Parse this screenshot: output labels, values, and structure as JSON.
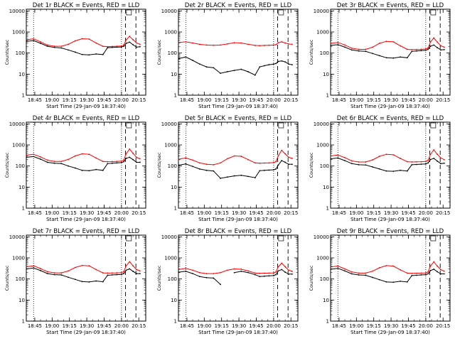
{
  "chart_data": [
    {
      "type": "line",
      "title": "Det 1r BLACK = Events, RED = LLD",
      "xlabel": "Start Time (29-Jan-09 18:37:40)",
      "ylabel": "Counts/sec",
      "x_ticks": [
        "18:45",
        "19:00",
        "19:15",
        "19:30",
        "19:45",
        "20:00",
        "20:15"
      ],
      "y_ticks": [
        "1",
        "10",
        "100",
        "1000",
        "10000"
      ],
      "xlim": [
        "18:37:40",
        "20:21"
      ],
      "ylim": [
        1,
        12000
      ],
      "y_scale": "log",
      "x": [
        "18:38",
        "18:44",
        "18:50",
        "18:56",
        "19:02",
        "19:08",
        "19:14",
        "19:20",
        "19:26",
        "19:32",
        "19:38",
        "19:44",
        "19:48",
        "19:52",
        "19:56",
        "20:00",
        "20:02",
        "20:04",
        "20:07",
        "20:10",
        "20:13",
        "20:16"
      ],
      "series": [
        {
          "color": "#000000",
          "values": [
            360,
            390,
            290,
            210,
            185,
            175,
            140,
            110,
            85,
            82,
            90,
            85,
            180,
            185,
            190,
            195,
            210,
            290,
            330,
            250,
            190,
            200
          ]
        },
        {
          "color": "#ff0000",
          "values": [
            430,
            470,
            340,
            240,
            210,
            210,
            260,
            380,
            480,
            460,
            300,
            210,
            200,
            205,
            210,
            215,
            240,
            420,
            620,
            430,
            300,
            260
          ]
        }
      ]
    },
    {
      "type": "line",
      "title": "Det 2r BLACK = Events, RED = LLD",
      "xlabel": "Start Time (29-Jan-09 18:37:40)",
      "ylabel": "Counts/sec",
      "x_ticks": [
        "18:45",
        "19:00",
        "19:15",
        "19:30",
        "19:45",
        "20:00",
        "20:15"
      ],
      "y_ticks": [
        "1",
        "10",
        "100",
        "1000",
        "10000"
      ],
      "xlim": [
        "18:37:40",
        "20:21"
      ],
      "ylim": [
        1,
        12000
      ],
      "y_scale": "log",
      "x": [
        "18:38",
        "18:44",
        "18:50",
        "18:56",
        "19:02",
        "19:08",
        "19:14",
        "19:20",
        "19:26",
        "19:32",
        "19:38",
        "19:44",
        "19:48",
        "19:52",
        "19:56",
        "20:00",
        "20:02",
        "20:04",
        "20:07",
        "20:10",
        "20:13",
        "20:16"
      ],
      "series": [
        {
          "color": "#000000",
          "values": [
            55,
            65,
            45,
            30,
            22,
            20,
            11,
            13,
            15,
            17,
            13,
            9,
            22,
            25,
            28,
            30,
            32,
            40,
            42,
            38,
            30,
            28
          ]
        },
        {
          "color": "#ff0000",
          "values": [
            320,
            340,
            300,
            260,
            240,
            235,
            240,
            270,
            310,
            300,
            260,
            230,
            225,
            230,
            235,
            240,
            250,
            310,
            340,
            300,
            270,
            260
          ]
        }
      ]
    },
    {
      "type": "line",
      "title": "Det 3r BLACK = Events, RED = LLD",
      "xlabel": "Start Time (29-Jan-09 18:37:40)",
      "ylabel": "Counts/sec",
      "x_ticks": [
        "18:45",
        "19:00",
        "19:15",
        "19:30",
        "19:45",
        "20:00",
        "20:15"
      ],
      "y_ticks": [
        "1",
        "10",
        "100",
        "1000",
        "10000"
      ],
      "xlim": [
        "18:37:40",
        "20:21"
      ],
      "ylim": [
        1,
        12000
      ],
      "y_scale": "log",
      "x": [
        "18:38",
        "18:44",
        "18:50",
        "18:56",
        "19:02",
        "19:08",
        "19:14",
        "19:20",
        "19:26",
        "19:32",
        "19:38",
        "19:44",
        "19:48",
        "19:52",
        "19:56",
        "20:00",
        "20:02",
        "20:04",
        "20:07",
        "20:10",
        "20:13",
        "20:16"
      ],
      "series": [
        {
          "color": "#000000",
          "values": [
            230,
            250,
            190,
            140,
            125,
            120,
            95,
            75,
            60,
            58,
            65,
            60,
            120,
            125,
            130,
            135,
            150,
            210,
            240,
            180,
            140,
            145
          ]
        },
        {
          "color": "#ff0000",
          "values": [
            290,
            320,
            240,
            170,
            150,
            150,
            190,
            290,
            360,
            340,
            220,
            150,
            145,
            148,
            150,
            155,
            175,
            330,
            520,
            330,
            220,
            190
          ]
        }
      ]
    },
    {
      "type": "line",
      "title": "Det 4r BLACK = Events, RED = LLD",
      "xlabel": "Start Time (29-Jan-09 18:37:40)",
      "ylabel": "Counts/sec",
      "x_ticks": [
        "18:45",
        "19:00",
        "19:15",
        "19:30",
        "19:45",
        "20:00",
        "20:15"
      ],
      "y_ticks": [
        "1",
        "10",
        "100",
        "1000",
        "10000"
      ],
      "xlim": [
        "18:37:40",
        "20:21"
      ],
      "ylim": [
        1,
        12000
      ],
      "y_scale": "log",
      "x": [
        "18:38",
        "18:44",
        "18:50",
        "18:56",
        "19:02",
        "19:08",
        "19:14",
        "19:20",
        "19:26",
        "19:32",
        "19:38",
        "19:44",
        "19:48",
        "19:52",
        "19:56",
        "20:00",
        "20:02",
        "20:04",
        "20:07",
        "20:10",
        "20:13",
        "20:16"
      ],
      "series": [
        {
          "color": "#000000",
          "values": [
            260,
            280,
            210,
            150,
            135,
            130,
            100,
            80,
            62,
            60,
            68,
            62,
            130,
            135,
            140,
            145,
            160,
            230,
            260,
            200,
            150,
            150
          ]
        },
        {
          "color": "#ff0000",
          "values": [
            330,
            360,
            270,
            190,
            165,
            165,
            205,
            300,
            380,
            360,
            240,
            165,
            160,
            162,
            165,
            170,
            190,
            380,
            640,
            400,
            260,
            220
          ]
        }
      ]
    },
    {
      "type": "line",
      "title": "Det 5r BLACK = Events, RED = LLD",
      "xlabel": "Start Time (29-Jan-09 18:37:40)",
      "ylabel": "Counts/sec",
      "x_ticks": [
        "18:45",
        "19:00",
        "19:15",
        "19:30",
        "19:45",
        "20:00",
        "20:15"
      ],
      "y_ticks": [
        "1",
        "10",
        "100",
        "1000",
        "10000"
      ],
      "xlim": [
        "18:37:40",
        "20:21"
      ],
      "ylim": [
        1,
        12000
      ],
      "y_scale": "log",
      "x": [
        "18:38",
        "18:44",
        "18:50",
        "18:56",
        "19:02",
        "19:08",
        "19:14",
        "19:20",
        "19:26",
        "19:32",
        "19:38",
        "19:44",
        "19:48",
        "19:52",
        "19:56",
        "20:00",
        "20:02",
        "20:04",
        "20:07",
        "20:10",
        "20:13",
        "20:16"
      ],
      "series": [
        {
          "color": "#000000",
          "values": [
            110,
            125,
            95,
            72,
            62,
            58,
            26,
            30,
            34,
            36,
            32,
            28,
            60,
            62,
            64,
            66,
            72,
            110,
            180,
            150,
            120,
            120
          ]
        },
        {
          "color": "#ff0000",
          "values": [
            210,
            240,
            190,
            140,
            120,
            115,
            140,
            220,
            300,
            290,
            200,
            140,
            135,
            138,
            140,
            145,
            160,
            300,
            560,
            380,
            260,
            230
          ]
        }
      ]
    },
    {
      "type": "line",
      "title": "Det 6r BLACK = Events, RED = LLD",
      "xlabel": "Start Time (29-Jan-09 18:37:40)",
      "ylabel": "Counts/sec",
      "x_ticks": [
        "18:45",
        "19:00",
        "19:15",
        "19:30",
        "19:45",
        "20:00",
        "20:15"
      ],
      "y_ticks": [
        "1",
        "10",
        "100",
        "1000",
        "10000"
      ],
      "xlim": [
        "18:37:40",
        "20:21"
      ],
      "ylim": [
        1,
        12000
      ],
      "y_scale": "log",
      "x": [
        "18:38",
        "18:44",
        "18:50",
        "18:56",
        "19:02",
        "19:08",
        "19:14",
        "19:20",
        "19:26",
        "19:32",
        "19:38",
        "19:44",
        "19:48",
        "19:52",
        "19:56",
        "20:00",
        "20:02",
        "20:04",
        "20:07",
        "20:10",
        "20:13",
        "20:16"
      ],
      "series": [
        {
          "color": "#000000",
          "values": [
            220,
            240,
            180,
            130,
            115,
            112,
            90,
            72,
            58,
            56,
            62,
            58,
            115,
            118,
            122,
            126,
            140,
            200,
            230,
            170,
            130,
            135
          ]
        },
        {
          "color": "#ff0000",
          "values": [
            300,
            330,
            250,
            175,
            155,
            155,
            195,
            290,
            360,
            340,
            230,
            160,
            155,
            158,
            160,
            165,
            185,
            350,
            580,
            360,
            240,
            200
          ]
        }
      ]
    },
    {
      "type": "line",
      "title": "Det 7r BLACK = Events, RED = LLD",
      "xlabel": "Start Time (29-Jan-09 18:37:40)",
      "ylabel": "Counts/sec",
      "x_ticks": [
        "18:45",
        "19:00",
        "19:15",
        "19:30",
        "19:45",
        "20:00",
        "20:15"
      ],
      "y_ticks": [
        "1",
        "10",
        "100",
        "1000",
        "10000"
      ],
      "xlim": [
        "18:37:40",
        "20:21"
      ],
      "ylim": [
        1,
        12000
      ],
      "y_scale": "log",
      "x": [
        "18:38",
        "18:44",
        "18:50",
        "18:56",
        "19:02",
        "19:08",
        "19:14",
        "19:20",
        "19:26",
        "19:32",
        "19:38",
        "19:44",
        "19:48",
        "19:52",
        "19:56",
        "20:00",
        "20:02",
        "20:04",
        "20:07",
        "20:10",
        "20:13",
        "20:16"
      ],
      "series": [
        {
          "color": "#000000",
          "values": [
            300,
            330,
            250,
            180,
            160,
            155,
            120,
            95,
            75,
            72,
            80,
            74,
            150,
            155,
            160,
            165,
            180,
            260,
            300,
            230,
            180,
            180
          ]
        },
        {
          "color": "#ff0000",
          "values": [
            380,
            420,
            310,
            220,
            195,
            195,
            240,
            350,
            440,
            420,
            280,
            195,
            190,
            192,
            195,
            200,
            220,
            420,
            660,
            420,
            280,
            240
          ]
        }
      ]
    },
    {
      "type": "line",
      "title": "Det 8r BLACK = Events, RED = LLD",
      "xlabel": "Start Time (29-Jan-09 18:37:40)",
      "ylabel": "Counts/sec",
      "x_ticks": [
        "18:45",
        "19:00",
        "19:15",
        "19:30",
        "19:45",
        "20:00",
        "20:15"
      ],
      "y_ticks": [
        "1",
        "10",
        "100",
        "1000",
        "10000"
      ],
      "xlim": [
        "18:37:40",
        "20:21"
      ],
      "ylim": [
        1,
        12000
      ],
      "y_scale": "log",
      "x": [
        "18:38",
        "18:44",
        "18:50",
        "18:56",
        "19:02",
        "19:08",
        "19:14",
        "19:20",
        "19:26",
        "19:32",
        "19:38",
        "19:44",
        "19:48",
        "19:52",
        "19:56",
        "20:00",
        "20:02",
        "20:04",
        "20:07",
        "20:10",
        "20:13",
        "20:16"
      ],
      "series": [
        {
          "color": "#000000",
          "values": [
            210,
            230,
            180,
            130,
            115,
            110,
            55,
            null,
            200,
            230,
            200,
            160,
            130,
            135,
            140,
            145,
            160,
            240,
            280,
            210,
            170,
            170
          ]
        },
        {
          "color": "#ff0000",
          "values": [
            280,
            320,
            260,
            200,
            180,
            180,
            200,
            260,
            300,
            290,
            240,
            190,
            185,
            188,
            190,
            195,
            215,
            380,
            560,
            380,
            260,
            230
          ]
        }
      ]
    },
    {
      "type": "line",
      "title": "Det 9r BLACK = Events, RED = LLD",
      "xlabel": "Start Time (29-Jan-09 18:37:40)",
      "ylabel": "Counts/sec",
      "x_ticks": [
        "18:45",
        "19:00",
        "19:15",
        "19:30",
        "19:45",
        "20:00",
        "20:15"
      ],
      "y_ticks": [
        "1",
        "10",
        "100",
        "1000",
        "10000"
      ],
      "xlim": [
        "18:37:40",
        "20:21"
      ],
      "ylim": [
        1,
        12000
      ],
      "y_scale": "log",
      "x": [
        "18:38",
        "18:44",
        "18:50",
        "18:56",
        "19:02",
        "19:08",
        "19:14",
        "19:20",
        "19:26",
        "19:32",
        "19:38",
        "19:44",
        "19:48",
        "19:52",
        "19:56",
        "20:00",
        "20:02",
        "20:04",
        "20:07",
        "20:10",
        "20:13",
        "20:16"
      ],
      "series": [
        {
          "color": "#000000",
          "values": [
            290,
            320,
            240,
            175,
            155,
            150,
            118,
            92,
            72,
            70,
            78,
            72,
            145,
            150,
            155,
            160,
            175,
            250,
            290,
            220,
            175,
            175
          ]
        },
        {
          "color": "#ff0000",
          "values": [
            370,
            410,
            300,
            215,
            190,
            190,
            235,
            340,
            430,
            410,
            270,
            190,
            185,
            188,
            190,
            195,
            215,
            410,
            650,
            410,
            275,
            235
          ]
        }
      ]
    }
  ]
}
